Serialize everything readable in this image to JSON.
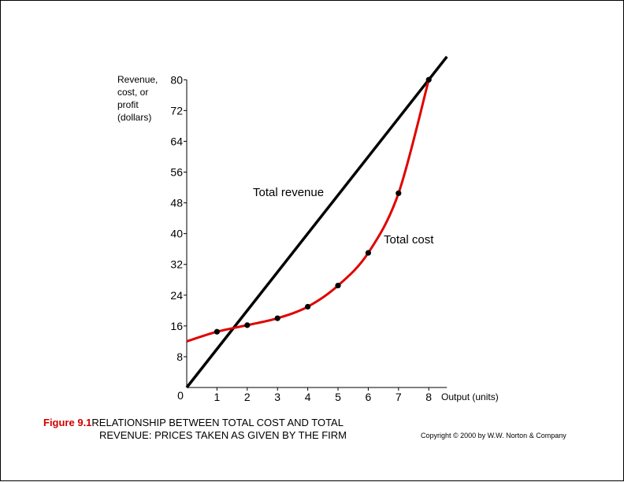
{
  "chart_data": {
    "type": "line",
    "ylabel_lines": [
      "Revenue,",
      "cost, or",
      "profit",
      "(dollars)"
    ],
    "xlabel": "Output (units)",
    "xlim": [
      0,
      8.6
    ],
    "ylim": [
      0,
      80
    ],
    "x_ticks": [
      1,
      2,
      3,
      4,
      5,
      6,
      7,
      8
    ],
    "y_ticks": [
      8,
      16,
      24,
      32,
      40,
      48,
      56,
      64,
      72,
      80
    ],
    "origin_label": "0",
    "series": [
      {
        "name": "Total revenue",
        "color": "#000000",
        "x": [
          0,
          8.6
        ],
        "y": [
          0,
          86
        ]
      },
      {
        "name": "Total cost",
        "color": "#e00000",
        "x": [
          0,
          1,
          2,
          3,
          4,
          5,
          6,
          7,
          8
        ],
        "y": [
          12,
          14.5,
          16.2,
          18,
          21,
          26.5,
          35,
          50.5,
          80
        ],
        "markers": [
          1,
          2,
          3,
          4,
          5,
          6,
          7,
          8
        ]
      }
    ],
    "grid": false,
    "legend": "none"
  },
  "caption": {
    "figure_number": "Figure 9.1",
    "line1": "RELATIONSHIP BETWEEN TOTAL COST AND TOTAL",
    "line2": "REVENUE: PRICES TAKEN AS GIVEN BY THE FIRM"
  },
  "copyright": "Copyright © 2000 by W.W. Norton & Company"
}
